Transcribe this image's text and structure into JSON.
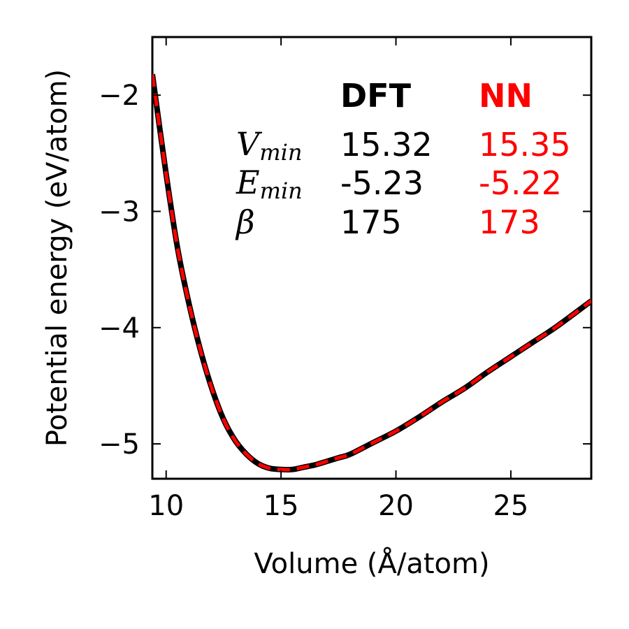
{
  "chart_data": {
    "type": "line",
    "xlabel": "Volume (Å/atom)",
    "ylabel": "Potential energy (eV/atom)",
    "xlim": [
      9.4,
      28.5
    ],
    "ylim": [
      -5.3,
      -1.5
    ],
    "xticks": [
      10,
      15,
      20,
      25
    ],
    "yticks": [
      -2,
      -3,
      -4,
      -5
    ],
    "xtick_labels": [
      "10",
      "15",
      "20",
      "25"
    ],
    "ytick_labels": [
      "−2",
      "−3",
      "−4",
      "−5"
    ],
    "grid": false,
    "series": [
      {
        "name": "DFT",
        "color": "#000000",
        "style": "solid",
        "x": [
          9.4,
          10.0,
          10.5,
          11.0,
          11.5,
          12.0,
          12.5,
          13.0,
          13.5,
          14.0,
          14.5,
          15.0,
          15.5,
          16.0,
          16.5,
          17.0,
          17.5,
          18.0,
          19.0,
          20.0,
          21.0,
          22.0,
          23.0,
          24.0,
          25.0,
          26.0,
          27.0,
          28.5
        ],
        "y": [
          -1.82,
          -2.68,
          -3.32,
          -3.8,
          -4.2,
          -4.53,
          -4.79,
          -4.97,
          -5.09,
          -5.17,
          -5.21,
          -5.22,
          -5.22,
          -5.2,
          -5.18,
          -5.15,
          -5.12,
          -5.09,
          -4.99,
          -4.89,
          -4.77,
          -4.64,
          -4.52,
          -4.38,
          -4.25,
          -4.12,
          -3.99,
          -3.77
        ]
      },
      {
        "name": "NN",
        "color": "#ff0000",
        "style": "dashed",
        "x": [
          9.4,
          10.0,
          10.5,
          11.0,
          11.5,
          12.0,
          12.5,
          13.0,
          13.5,
          14.0,
          14.5,
          15.0,
          15.5,
          16.0,
          16.5,
          17.0,
          17.5,
          18.0,
          19.0,
          20.0,
          21.0,
          22.0,
          23.0,
          24.0,
          25.0,
          26.0,
          27.0,
          28.5
        ],
        "y": [
          -1.82,
          -2.68,
          -3.32,
          -3.8,
          -4.2,
          -4.53,
          -4.79,
          -4.97,
          -5.09,
          -5.17,
          -5.21,
          -5.22,
          -5.22,
          -5.2,
          -5.18,
          -5.15,
          -5.12,
          -5.09,
          -4.99,
          -4.89,
          -4.77,
          -4.64,
          -4.52,
          -4.38,
          -4.25,
          -4.12,
          -3.99,
          -3.77
        ]
      }
    ],
    "annotation_table": {
      "columns": [
        "DFT",
        "NN"
      ],
      "column_colors": [
        "#000000",
        "#ff0000"
      ],
      "rows": [
        {
          "symbol": "V",
          "subscript": "min",
          "values": [
            "15.32",
            "15.35"
          ]
        },
        {
          "symbol": "E",
          "subscript": "min",
          "values": [
            "-5.23",
            "-5.22"
          ]
        },
        {
          "symbol": "β",
          "subscript": "",
          "values": [
            "175",
            "173"
          ]
        }
      ]
    }
  }
}
